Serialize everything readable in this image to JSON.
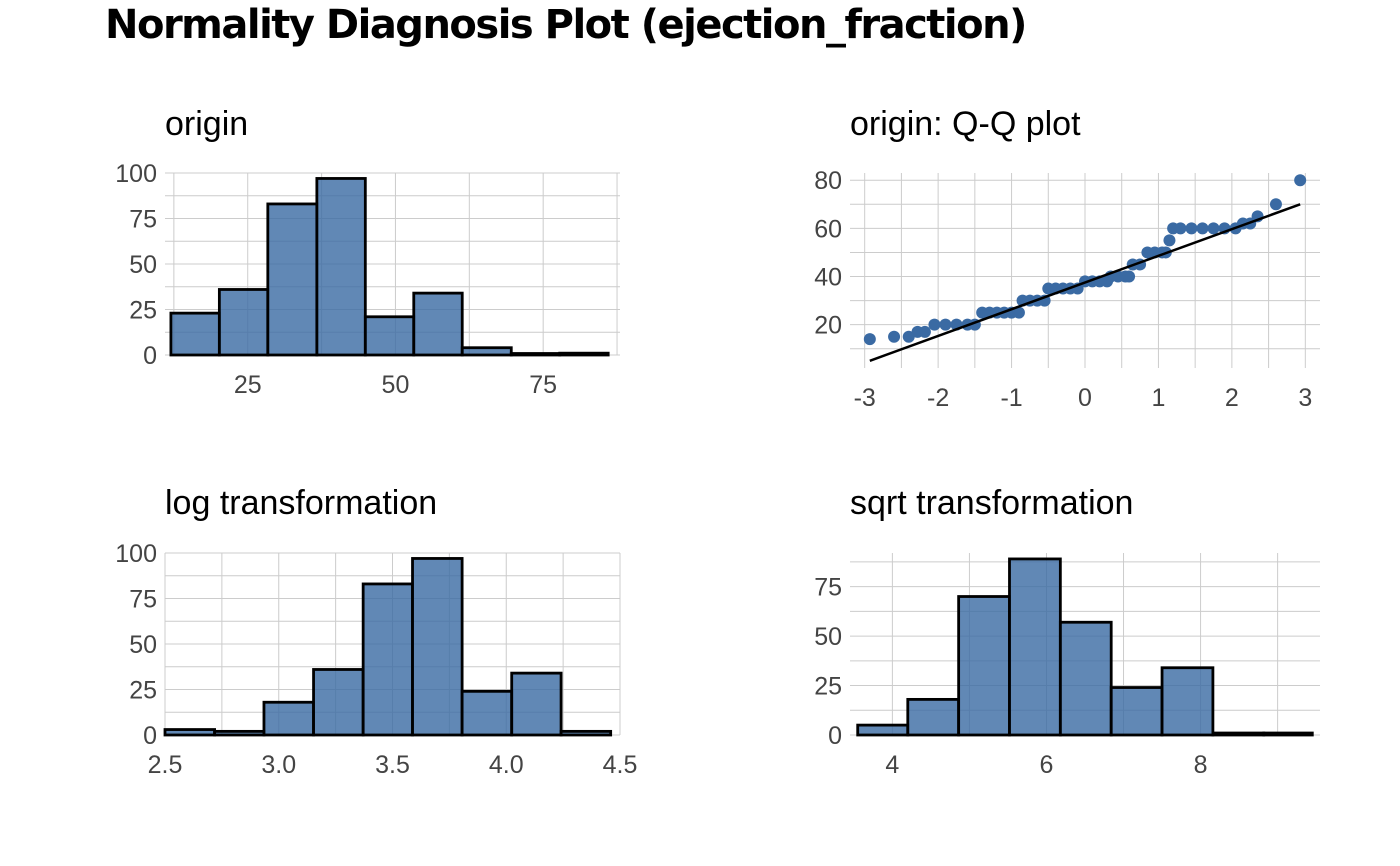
{
  "title": "Normality Diagnosis Plot (ejection_fraction)",
  "colors": {
    "fill": "#3a6aa3",
    "outline": "#000000",
    "grid": "#cccccc",
    "tick_text": "#444444"
  },
  "chart_data": [
    {
      "id": "origin",
      "type": "bar",
      "title": "origin",
      "xlabel": "",
      "ylabel": "",
      "xlim": [
        11,
        88
      ],
      "ylim": [
        0,
        100
      ],
      "xticks": [
        25,
        50,
        75
      ],
      "yticks": [
        0,
        25,
        50,
        75,
        100
      ],
      "grid": true,
      "bins": [
        {
          "x0": 12.0,
          "x1": 20.2,
          "count": 23
        },
        {
          "x0": 20.2,
          "x1": 28.4,
          "count": 36
        },
        {
          "x0": 28.4,
          "x1": 36.7,
          "count": 83
        },
        {
          "x0": 36.7,
          "x1": 44.9,
          "count": 97
        },
        {
          "x0": 44.9,
          "x1": 53.1,
          "count": 21
        },
        {
          "x0": 53.1,
          "x1": 61.3,
          "count": 34
        },
        {
          "x0": 61.3,
          "x1": 69.6,
          "count": 4
        },
        {
          "x0": 69.6,
          "x1": 77.8,
          "count": 0
        },
        {
          "x0": 77.8,
          "x1": 86.0,
          "count": 1
        }
      ]
    },
    {
      "id": "qq",
      "type": "scatter",
      "title": "origin: Q-Q plot",
      "xlabel": "",
      "ylabel": "",
      "xlim": [
        -3.2,
        3.2
      ],
      "ylim": [
        2,
        83
      ],
      "xticks": [
        -3,
        -2,
        -1,
        0,
        1,
        2,
        3
      ],
      "yticks": [
        20,
        40,
        60,
        80
      ],
      "grid": true,
      "reference_line": [
        [
          -2.93,
          5
        ],
        [
          2.93,
          70
        ]
      ],
      "points": [
        [
          -2.93,
          14
        ],
        [
          -2.6,
          15
        ],
        [
          -2.4,
          15
        ],
        [
          -2.28,
          17
        ],
        [
          -2.18,
          17
        ],
        [
          -2.05,
          20
        ],
        [
          -1.9,
          20
        ],
        [
          -1.75,
          20
        ],
        [
          -1.6,
          20
        ],
        [
          -1.5,
          20
        ],
        [
          -1.4,
          25
        ],
        [
          -1.3,
          25
        ],
        [
          -1.2,
          25
        ],
        [
          -1.1,
          25
        ],
        [
          -1.0,
          25
        ],
        [
          -0.9,
          25
        ],
        [
          -0.85,
          30
        ],
        [
          -0.75,
          30
        ],
        [
          -0.65,
          30
        ],
        [
          -0.55,
          30
        ],
        [
          -0.5,
          35
        ],
        [
          -0.4,
          35
        ],
        [
          -0.3,
          35
        ],
        [
          -0.2,
          35
        ],
        [
          -0.1,
          35
        ],
        [
          0.0,
          38
        ],
        [
          0.1,
          38
        ],
        [
          0.2,
          38
        ],
        [
          0.3,
          38
        ],
        [
          0.35,
          40
        ],
        [
          0.45,
          40
        ],
        [
          0.55,
          40
        ],
        [
          0.6,
          40
        ],
        [
          0.65,
          45
        ],
        [
          0.75,
          45
        ],
        [
          0.85,
          50
        ],
        [
          0.95,
          50
        ],
        [
          1.05,
          50
        ],
        [
          1.1,
          50
        ],
        [
          1.15,
          55
        ],
        [
          1.2,
          60
        ],
        [
          1.3,
          60
        ],
        [
          1.45,
          60
        ],
        [
          1.6,
          60
        ],
        [
          1.75,
          60
        ],
        [
          1.9,
          60
        ],
        [
          2.05,
          60
        ],
        [
          2.15,
          62
        ],
        [
          2.25,
          62
        ],
        [
          2.35,
          65
        ],
        [
          2.6,
          70
        ],
        [
          2.93,
          80
        ]
      ]
    },
    {
      "id": "log",
      "type": "bar",
      "title": "log transformation",
      "xlabel": "",
      "ylabel": "",
      "xlim": [
        2.5,
        4.5
      ],
      "ylim": [
        0,
        100
      ],
      "xticks": [
        2.5,
        3.0,
        3.5,
        4.0,
        4.5
      ],
      "yticks": [
        0,
        25,
        50,
        75,
        100
      ],
      "grid": true,
      "bins": [
        {
          "x0": 2.5,
          "x1": 2.718,
          "count": 3
        },
        {
          "x0": 2.718,
          "x1": 2.935,
          "count": 2
        },
        {
          "x0": 2.935,
          "x1": 3.153,
          "count": 18
        },
        {
          "x0": 3.153,
          "x1": 3.371,
          "count": 36
        },
        {
          "x0": 3.371,
          "x1": 3.588,
          "count": 83
        },
        {
          "x0": 3.588,
          "x1": 3.806,
          "count": 97
        },
        {
          "x0": 3.806,
          "x1": 4.024,
          "count": 24
        },
        {
          "x0": 4.024,
          "x1": 4.241,
          "count": 34
        },
        {
          "x0": 4.241,
          "x1": 4.459,
          "count": 2
        }
      ]
    },
    {
      "id": "sqrt",
      "type": "bar",
      "title": "sqrt transformation",
      "xlabel": "",
      "ylabel": "",
      "xlim": [
        3.45,
        9.55
      ],
      "ylim": [
        0,
        92
      ],
      "xticks": [
        4,
        6,
        8
      ],
      "yticks": [
        0,
        25,
        50,
        75
      ],
      "grid": true,
      "bins": [
        {
          "x0": 3.55,
          "x1": 4.2,
          "count": 5
        },
        {
          "x0": 4.2,
          "x1": 4.86,
          "count": 18
        },
        {
          "x0": 4.86,
          "x1": 5.52,
          "count": 70
        },
        {
          "x0": 5.52,
          "x1": 6.18,
          "count": 89
        },
        {
          "x0": 6.18,
          "x1": 6.84,
          "count": 57
        },
        {
          "x0": 6.84,
          "x1": 7.5,
          "count": 24
        },
        {
          "x0": 7.5,
          "x1": 8.16,
          "count": 34
        },
        {
          "x0": 8.16,
          "x1": 8.82,
          "count": 1
        },
        {
          "x0": 8.82,
          "x1": 9.45,
          "count": 1
        }
      ]
    }
  ]
}
